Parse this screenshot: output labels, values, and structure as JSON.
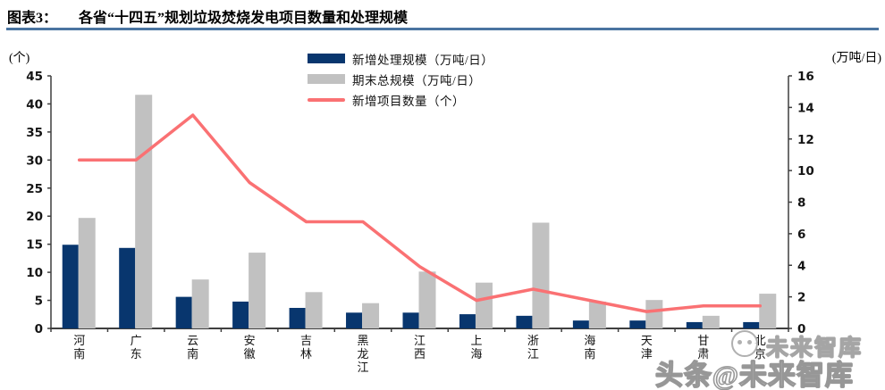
{
  "header": {
    "figure_label": "图表3：",
    "title": "各省“十四五”规划垃圾焚烧发电项目数量和处理规模"
  },
  "axis_units": {
    "left": "(个)",
    "right": "(万吨/日)"
  },
  "chart_data": {
    "type": "bar",
    "subtype": "combo-bar-line-dual-axis",
    "title": "各省“十四五”规划垃圾焚烧发电项目数量和处理规模",
    "categories": [
      "河南",
      "广东",
      "云南",
      "安徽",
      "吉林",
      "黑龙江",
      "江西",
      "上海",
      "浙江",
      "海南",
      "天津",
      "甘肃",
      "北京"
    ],
    "categories_note": "last category partially hidden behind watermark",
    "series": [
      {
        "name": "新增处理规模（万吨/日）",
        "kind": "bar",
        "axis": "right",
        "color": "#08366e",
        "values": [
          5.3,
          5.1,
          2.0,
          1.7,
          1.3,
          1.0,
          1.0,
          0.9,
          0.8,
          0.5,
          0.5,
          0.4,
          0.4
        ]
      },
      {
        "name": "期末总规模（万吨/日）",
        "kind": "bar",
        "axis": "right",
        "color": "#c1c1c1",
        "values": [
          7.0,
          14.8,
          3.1,
          4.8,
          2.3,
          1.6,
          3.6,
          2.9,
          6.7,
          1.7,
          1.8,
          0.8,
          2.2
        ]
      },
      {
        "name": "新增项目数量（个）",
        "kind": "line",
        "axis": "left",
        "color": "#fa7173",
        "values": [
          30,
          30,
          38,
          26,
          19,
          19,
          11,
          5,
          7,
          5,
          3,
          4,
          4
        ]
      }
    ],
    "left_axis": {
      "unit": "(个)",
      "min": 0,
      "max": 45,
      "ticks": [
        0,
        5,
        10,
        15,
        20,
        25,
        30,
        35,
        40,
        45
      ]
    },
    "right_axis": {
      "unit": "(万吨/日)",
      "min": 0,
      "max": 16,
      "ticks": [
        0,
        2,
        4,
        6,
        8,
        10,
        12,
        14,
        16
      ]
    },
    "grid": false,
    "legend_position": "top-center"
  },
  "watermark": {
    "small_text": "未来智库",
    "big_text": "头条@未来智库",
    "logo": "circle-face-logo"
  },
  "colors": {
    "bar_new_capacity": "#08366e",
    "bar_total_capacity": "#c1c1c1",
    "line_new_projects": "#fa7173",
    "title_rule": "#4a74a0",
    "axis_line": "#3f3f3f",
    "text": "#000000"
  }
}
